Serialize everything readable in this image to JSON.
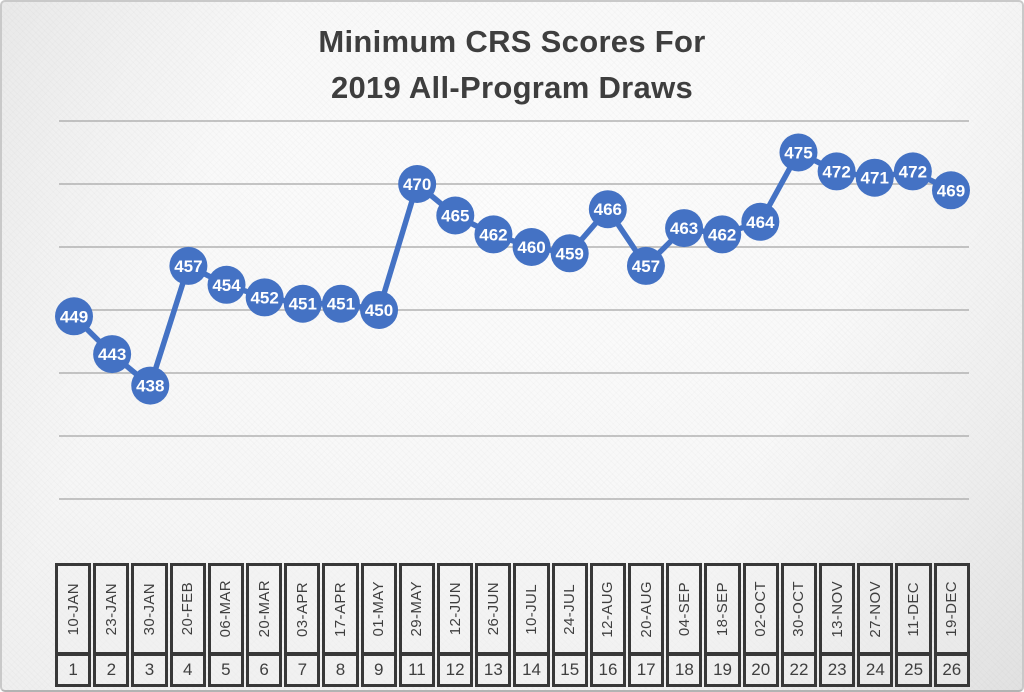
{
  "accent_color": "#4472C4",
  "chart_data": {
    "type": "line",
    "title": "Minimum CRS Scores For 2019 All-Program Draws",
    "title_lines": [
      "Minimum CRS Scores For",
      "2019 All-Program Draws"
    ],
    "xlabel": "",
    "ylabel": "",
    "legend_position": "none",
    "grid": "horizontal",
    "ylim": [
      415,
      485
    ],
    "grid_values": [
      420,
      430,
      440,
      450,
      460,
      470,
      480
    ],
    "categories": [
      "10-JAN",
      "23-JAN",
      "30-JAN",
      "20-FEB",
      "06-MAR",
      "20-MAR",
      "03-APR",
      "17-APR",
      "01-MAY",
      "29-MAY",
      "12-JUN",
      "26-JUN",
      "10-JUL",
      "24-JUL",
      "12-AUG",
      "20-AUG",
      "04-SEP",
      "18-SEP",
      "02-OCT",
      "30-OCT",
      "13-NOV",
      "27-NOV",
      "11-DEC",
      "19-DEC"
    ],
    "draw_numbers": [
      "1",
      "2",
      "3",
      "4",
      "5",
      "6",
      "7",
      "8",
      "9",
      "11",
      "12",
      "13",
      "14",
      "15",
      "16",
      "17",
      "18",
      "19",
      "20",
      "22",
      "23",
      "24",
      "25",
      "26"
    ],
    "series": [
      {
        "name": "Minimum CRS Score",
        "values": [
          449,
          443,
          438,
          457,
          454,
          452,
          451,
          451,
          450,
          470,
          465,
          462,
          460,
          459,
          466,
          457,
          463,
          462,
          464,
          475,
          472,
          471,
          472,
          469
        ]
      }
    ],
    "marker_color": "#4472C4",
    "marker_label_color": "#FFFFFF",
    "line_color": "#4472C4",
    "gridline_color": "#a8a8a8",
    "axis_border_color": "#383838",
    "axis_text_color": "#3f3f3f",
    "title_color": "#3e3e3e"
  }
}
